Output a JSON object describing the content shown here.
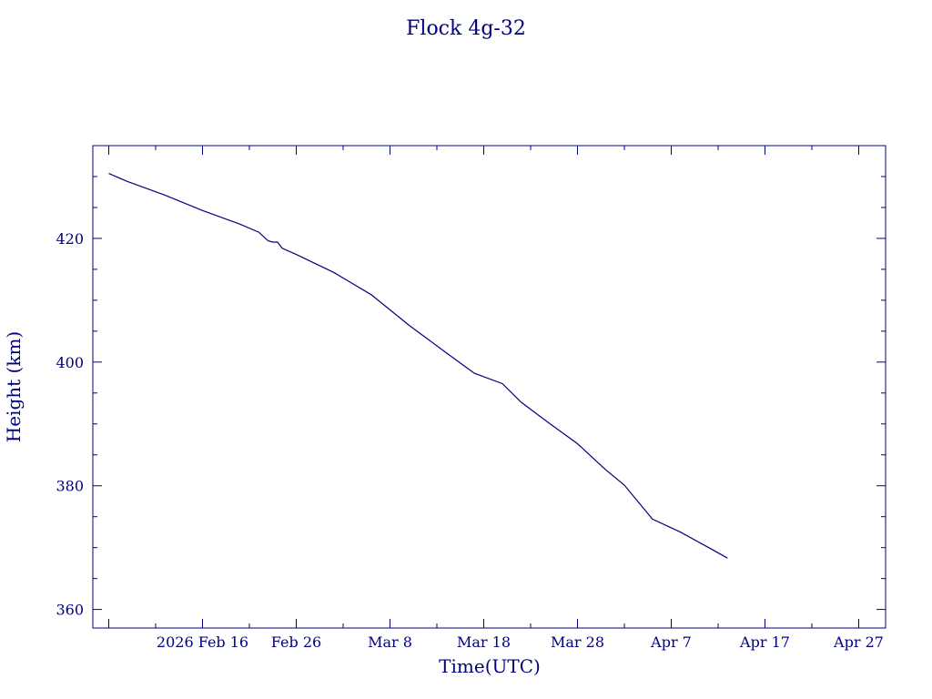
{
  "chart_data": {
    "type": "line",
    "title": "Flock 4g-32",
    "xlabel": "Time(UTC)",
    "ylabel": "Height (km)",
    "x_tick_labels": [
      "2026 Feb 16",
      "Feb 26",
      "Mar  8",
      "Mar 18",
      "Mar 28",
      "Apr  7",
      "Apr 17",
      "Apr 27"
    ],
    "y_tick_labels": [
      "360",
      "380",
      "400",
      "420"
    ],
    "y_ticks": [
      360,
      380,
      400,
      420
    ],
    "xlim": [
      "2026-02-06",
      "2026-05-01"
    ],
    "ylim": [
      357,
      435
    ],
    "grid": false,
    "colors": {
      "line": "#000080",
      "axes": "#000080",
      "text": "#000080"
    },
    "series": [
      {
        "x": [
          "2026-02-06",
          "2026-02-08",
          "2026-02-12",
          "2026-02-16",
          "2026-02-20",
          "2026-02-22",
          "2026-02-23",
          "2026-02-23.5",
          "2026-02-24",
          "2026-02-24.5",
          "2026-02-26",
          "2026-03-02",
          "2026-03-06",
          "2026-03-10",
          "2026-03-14",
          "2026-03-17",
          "2026-03-20",
          "2026-03-22",
          "2026-03-25",
          "2026-03-28",
          "2026-03-31",
          "2026-04-02",
          "2026-04-05",
          "2026-04-08",
          "2026-04-11",
          "2026-04-13"
        ],
        "y": [
          430.5,
          429.2,
          427.0,
          424.5,
          422.3,
          421.0,
          419.6,
          419.4,
          419.4,
          418.4,
          417.4,
          414.5,
          410.9,
          406.0,
          401.5,
          398.2,
          396.5,
          393.5,
          390.1,
          386.8,
          382.6,
          380.1,
          374.6,
          372.5,
          370.0,
          368.3
        ]
      }
    ]
  }
}
